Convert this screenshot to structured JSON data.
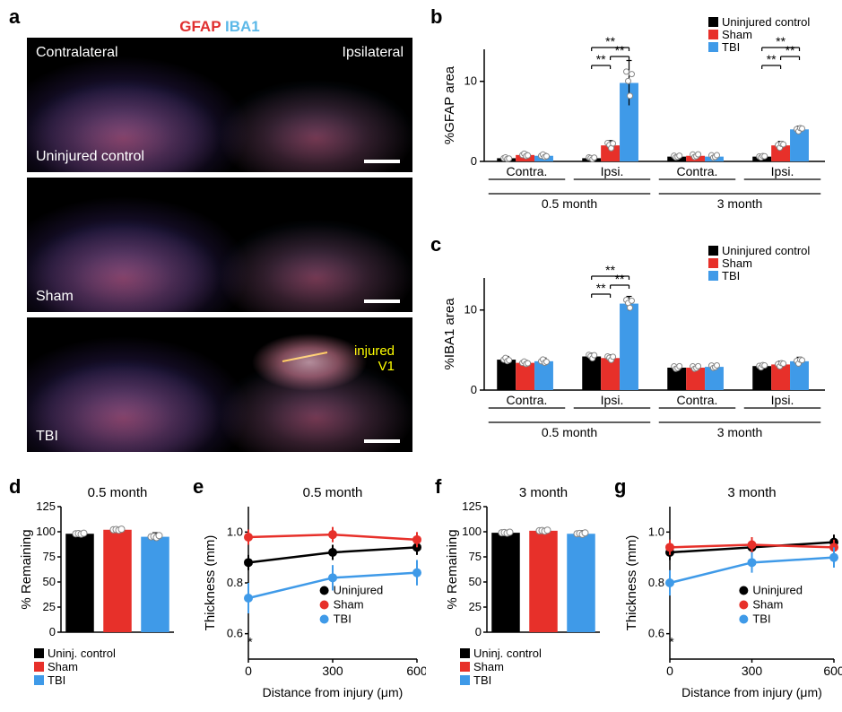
{
  "colors": {
    "uninjured": "#000000",
    "sham": "#e7302a",
    "tbi": "#3f9ae8",
    "white": "#ffffff",
    "yellow": "#ffff00"
  },
  "panelA": {
    "label": "a",
    "header_gfap": "GFAP",
    "header_iba1": "IBA1",
    "contralateral": "Contralateral",
    "ipsilateral": "Ipsilateral",
    "rows": [
      {
        "name": "Uninjured control"
      },
      {
        "name": "Sham"
      },
      {
        "name": "TBI"
      }
    ],
    "injury_label": "injured\nV1"
  },
  "panelB": {
    "label": "b",
    "y_title": "%GFAP area",
    "y_max": 14,
    "y_ticks": [
      0,
      10
    ],
    "legend": [
      "Uninjured control",
      "Sham",
      "TBI"
    ],
    "x_sub": [
      "Contra.",
      "Ipsi.",
      "Contra.",
      "Ipsi."
    ],
    "x_group": [
      "0.5 month",
      "3 month"
    ],
    "series": [
      {
        "color": "#000000",
        "values": [
          0.4,
          0.4,
          0.6,
          0.6
        ],
        "err": [
          0.2,
          0.2,
          0.2,
          0.2
        ]
      },
      {
        "color": "#e7302a",
        "values": [
          0.8,
          2.0,
          0.7,
          2.0
        ],
        "err": [
          0.3,
          0.6,
          0.3,
          0.5
        ]
      },
      {
        "color": "#3f9ae8",
        "values": [
          0.7,
          9.8,
          0.6,
          4.0
        ],
        "err": [
          0.3,
          2.8,
          0.3,
          0.4
        ]
      }
    ],
    "sig": [
      {
        "group": 1,
        "pairs": [
          [
            0,
            2
          ],
          [
            1,
            2
          ],
          [
            0,
            1,
            "short"
          ]
        ],
        "label": "**"
      },
      {
        "group": 3,
        "pairs": [
          [
            0,
            2
          ],
          [
            1,
            2
          ],
          [
            0,
            1,
            "short"
          ]
        ],
        "label": "**"
      }
    ]
  },
  "panelC": {
    "label": "c",
    "y_title": "%IBA1 area",
    "y_max": 14,
    "y_ticks": [
      0,
      10
    ],
    "legend": [
      "Uninjured control",
      "Sham",
      "TBI"
    ],
    "x_sub": [
      "Contra.",
      "Ipsi.",
      "Contra.",
      "Ipsi."
    ],
    "x_group": [
      "0.5 month",
      "3 month"
    ],
    "series": [
      {
        "color": "#000000",
        "values": [
          3.8,
          4.2,
          2.8,
          3.0
        ],
        "err": [
          0.4,
          0.4,
          0.3,
          0.3
        ]
      },
      {
        "color": "#e7302a",
        "values": [
          3.4,
          4.0,
          2.8,
          3.2
        ],
        "err": [
          0.3,
          0.4,
          0.3,
          0.4
        ]
      },
      {
        "color": "#3f9ae8",
        "values": [
          3.6,
          10.8,
          2.9,
          3.6
        ],
        "err": [
          0.4,
          0.9,
          0.3,
          0.5
        ]
      }
    ],
    "sig": [
      {
        "group": 1,
        "pairs": [
          [
            0,
            2
          ],
          [
            1,
            2
          ],
          [
            0,
            1,
            "short"
          ]
        ],
        "label": "**"
      }
    ]
  },
  "panelD": {
    "label": "d",
    "title": "0.5 month",
    "y_title": "% Remaining",
    "y_ticks": [
      0,
      25,
      50,
      75,
      100,
      125
    ],
    "y_max": 125,
    "legend": [
      "Uninj. control",
      "Sham",
      "TBI"
    ],
    "series": [
      {
        "color": "#000000",
        "value": 98,
        "err": 2
      },
      {
        "color": "#e7302a",
        "value": 102,
        "err": 2
      },
      {
        "color": "#3f9ae8",
        "value": 95,
        "err": 4
      }
    ]
  },
  "panelE": {
    "label": "e",
    "title": "0.5 month",
    "y_title": "Thickness (mm)",
    "x_title": "Distance from injury (μm)",
    "y_ticks": [
      0.6,
      0.8,
      1.0
    ],
    "y_min": 0.5,
    "y_max": 1.1,
    "x_ticks": [
      0,
      300,
      600
    ],
    "legend": [
      "Uninjured",
      "Sham",
      "TBI"
    ],
    "series": [
      {
        "color": "#000000",
        "values": [
          0.88,
          0.92,
          0.94
        ],
        "err": [
          0.03,
          0.03,
          0.03
        ]
      },
      {
        "color": "#e7302a",
        "values": [
          0.98,
          0.99,
          0.97
        ],
        "err": [
          0.03,
          0.03,
          0.03
        ]
      },
      {
        "color": "#3f9ae8",
        "values": [
          0.74,
          0.82,
          0.84
        ],
        "err": [
          0.06,
          0.05,
          0.05
        ]
      }
    ],
    "sig_x0": "*"
  },
  "panelF": {
    "label": "f",
    "title": "3 month",
    "y_title": "% Remaining",
    "y_ticks": [
      0,
      25,
      50,
      75,
      100,
      125
    ],
    "y_max": 125,
    "legend": [
      "Uninj. control",
      "Sham",
      "TBI"
    ],
    "series": [
      {
        "color": "#000000",
        "value": 99,
        "err": 2
      },
      {
        "color": "#e7302a",
        "value": 101,
        "err": 2
      },
      {
        "color": "#3f9ae8",
        "value": 98,
        "err": 3
      }
    ]
  },
  "panelG": {
    "label": "g",
    "title": "3 month",
    "y_title": "Thickness (mm)",
    "x_title": "Distance from injury (μm)",
    "y_ticks": [
      0.6,
      0.8,
      1.0
    ],
    "y_min": 0.5,
    "y_max": 1.1,
    "x_ticks": [
      0,
      300,
      600
    ],
    "legend": [
      "Uninjured",
      "Sham",
      "TBI"
    ],
    "series": [
      {
        "color": "#000000",
        "values": [
          0.92,
          0.94,
          0.96
        ],
        "err": [
          0.03,
          0.03,
          0.03
        ]
      },
      {
        "color": "#e7302a",
        "values": [
          0.94,
          0.95,
          0.94
        ],
        "err": [
          0.03,
          0.03,
          0.03
        ]
      },
      {
        "color": "#3f9ae8",
        "values": [
          0.8,
          0.88,
          0.9
        ],
        "err": [
          0.05,
          0.04,
          0.04
        ]
      }
    ],
    "sig_x0": "*"
  }
}
